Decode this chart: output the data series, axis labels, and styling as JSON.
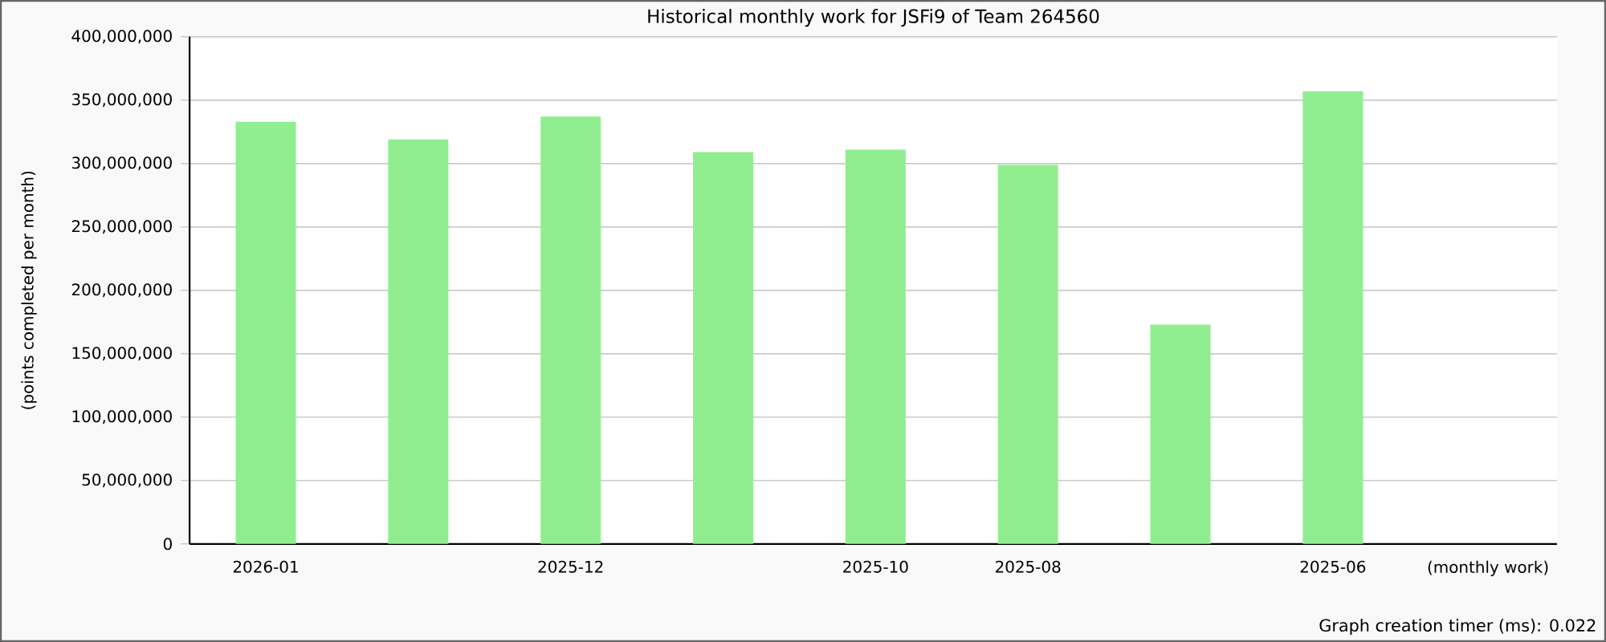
{
  "chart_data": {
    "type": "bar",
    "title": "Historical monthly work for JSFi9 of Team 264560",
    "xlabel": "(monthly work)",
    "ylabel": "(points completed per month)",
    "annotations": [
      "Graph creation timer (ms): 0.022"
    ],
    "categories": [
      "2026-01",
      null,
      "2025-12",
      null,
      "2025-10",
      "2025-08",
      null,
      "2025-06"
    ],
    "values": [
      333000000,
      319000000,
      337000000,
      309000000,
      311000000,
      299000000,
      173000000,
      357000000
    ],
    "color": "#90ee90",
    "ylim": [
      0,
      400000000
    ],
    "yticks": [
      0,
      {
        "value": 50000000,
        "label": "50,000,000"
      },
      {
        "value": 100000000,
        "label": "100,000,000"
      },
      {
        "value": 150000000,
        "label": "150,000,000"
      },
      {
        "value": 200000000,
        "label": "200,000,000"
      },
      {
        "value": 250000000,
        "label": "250,000,000"
      },
      {
        "value": 300000000,
        "label": "300,000,000"
      },
      {
        "value": 350000000,
        "label": "350,000,000"
      },
      {
        "value": 400000000,
        "label": "400,000,000"
      }
    ],
    "grid": "y"
  }
}
